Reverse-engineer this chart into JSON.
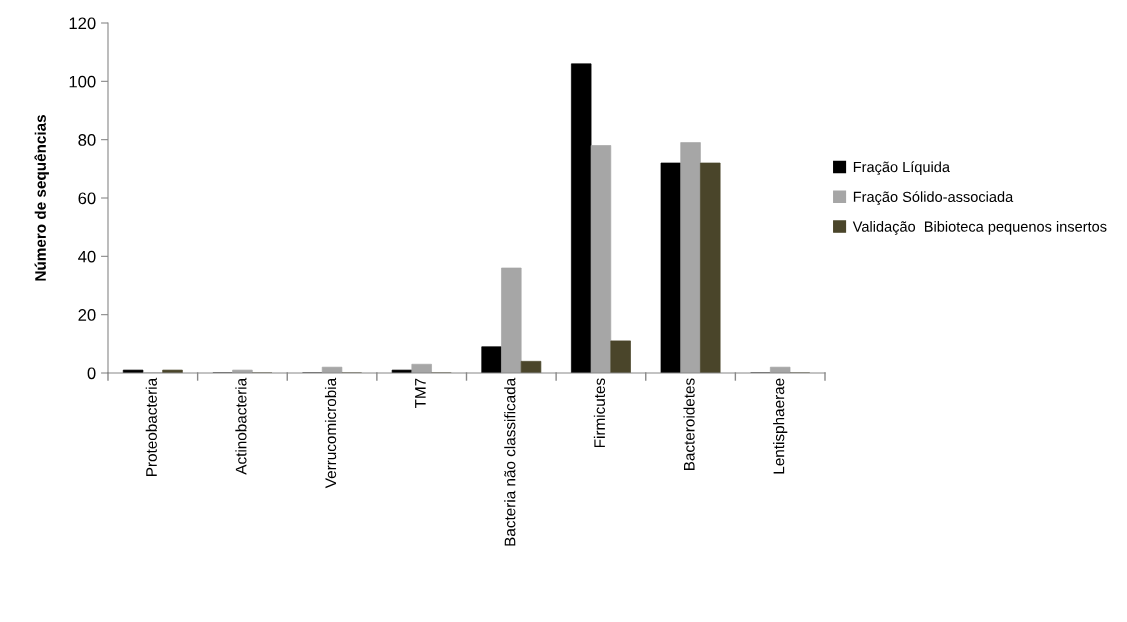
{
  "chart_data": {
    "type": "bar",
    "ylabel": "Número de sequências",
    "categories": [
      "Proteobacteria",
      "Actinobacteria",
      "Verrucomicrobia",
      "TM7",
      "Bacteria não classificada",
      "Firmicutes",
      "Bacteroidetes",
      "Lentisphaerae"
    ],
    "series": [
      {
        "name": "Fração Líquida",
        "color": "#000000",
        "values": [
          1,
          0,
          0,
          1,
          9,
          106,
          72,
          0
        ]
      },
      {
        "name": "Fração Sólido-associada",
        "color": "#a6a6a6",
        "values": [
          0,
          1,
          2,
          3,
          36,
          78,
          79,
          2
        ]
      },
      {
        "name": "Validação  Bibioteca pequenos insertos",
        "color": "#4a452a",
        "values": [
          1,
          0,
          0,
          0,
          4,
          11,
          72,
          0
        ]
      }
    ],
    "ylim": [
      0,
      120
    ],
    "yticks": [
      0,
      20,
      40,
      60,
      80,
      100,
      120
    ],
    "grid": false,
    "legend": "right"
  }
}
